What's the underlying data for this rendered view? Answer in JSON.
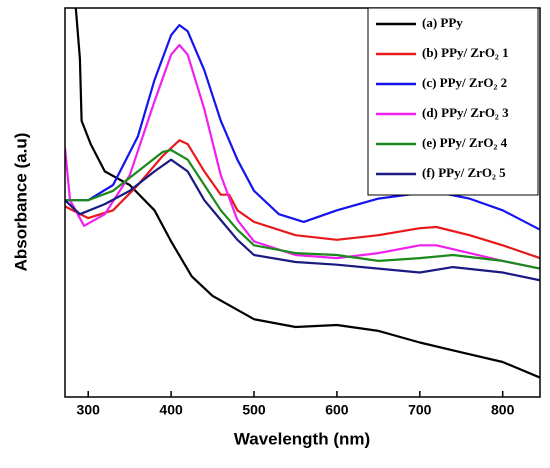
{
  "chart_data": {
    "type": "line",
    "xlabel": "Wavelength (nm)",
    "ylabel": "Absorbance (a.u)",
    "xlim": [
      272,
      845
    ],
    "ylim": [
      0,
      100
    ],
    "xticks": [
      300,
      400,
      500,
      600,
      700,
      800
    ],
    "grid": false,
    "legend": "upper right",
    "series": [
      {
        "name": "(a) PPy",
        "color": "#000000",
        "x": [
          285,
          290,
          292,
          303,
          320,
          350,
          380,
          400,
          425,
          450,
          500,
          550,
          600,
          650,
          700,
          750,
          800,
          845
        ],
        "values": [
          100,
          87,
          71,
          65,
          58,
          54.5,
          48,
          40,
          31,
          26,
          20,
          18,
          18.5,
          17,
          14,
          11.5,
          9,
          5
        ]
      },
      {
        "name": "(b) PPy/ ZrO₂ 1",
        "color": "#e8191b",
        "x": [
          272,
          300,
          330,
          360,
          390,
          410,
          420,
          440,
          460,
          470,
          480,
          500,
          550,
          600,
          650,
          700,
          720,
          760,
          800,
          845
        ],
        "values": [
          49,
          46,
          48,
          54.5,
          62,
          66,
          65,
          58,
          52,
          52,
          48,
          45,
          41.6,
          40.4,
          41.6,
          43.4,
          43.7,
          41.6,
          39,
          35.7
        ]
      },
      {
        "name": "(c) PPy/ ZrO₂ 2",
        "color": "#1414f0",
        "x": [
          272,
          300,
          330,
          360,
          380,
          400,
          410,
          420,
          440,
          460,
          480,
          500,
          530,
          560,
          600,
          650,
          700,
          720,
          760,
          800,
          845
        ],
        "values": [
          50.6,
          50.6,
          54.5,
          67,
          81.5,
          93,
          95.6,
          94,
          84,
          71,
          61,
          53,
          47,
          45,
          48,
          51,
          52.4,
          52.7,
          51,
          48,
          43
        ]
      },
      {
        "name": "(d) PPy/ ZrO₂ 3",
        "color": "#f020f0",
        "x": [
          272,
          278,
          295,
          320,
          350,
          380,
          400,
          410,
          420,
          440,
          460,
          480,
          500,
          550,
          600,
          650,
          700,
          720,
          760,
          800,
          845
        ],
        "values": [
          64,
          50.6,
          44,
          47,
          57,
          76,
          88,
          90.5,
          88,
          74,
          57,
          45.5,
          40,
          36.5,
          35.7,
          37,
          39,
          39,
          37,
          35,
          33
        ]
      },
      {
        "name": "(e) PPy/ ZrO₂ 4",
        "color": "#1a8a1a",
        "x": [
          272,
          300,
          330,
          360,
          390,
          400,
          420,
          440,
          460,
          480,
          500,
          550,
          600,
          650,
          700,
          740,
          800,
          845
        ],
        "values": [
          50.6,
          50.6,
          53,
          58,
          63,
          63.5,
          61,
          54.5,
          48,
          43,
          39,
          37,
          36.5,
          35,
          35.7,
          36.5,
          35,
          33
        ]
      },
      {
        "name": "(f) PPy/ ZrO₂ 5",
        "color": "#1a1a80",
        "x": [
          272,
          290,
          320,
          350,
          380,
          400,
          420,
          440,
          460,
          480,
          500,
          550,
          600,
          650,
          700,
          740,
          800,
          845
        ],
        "values": [
          50.6,
          47,
          49.6,
          53,
          58,
          61,
          58,
          50.6,
          45.5,
          40.4,
          36.5,
          34.7,
          34,
          33,
          32,
          33.4,
          32,
          30
        ]
      }
    ]
  }
}
